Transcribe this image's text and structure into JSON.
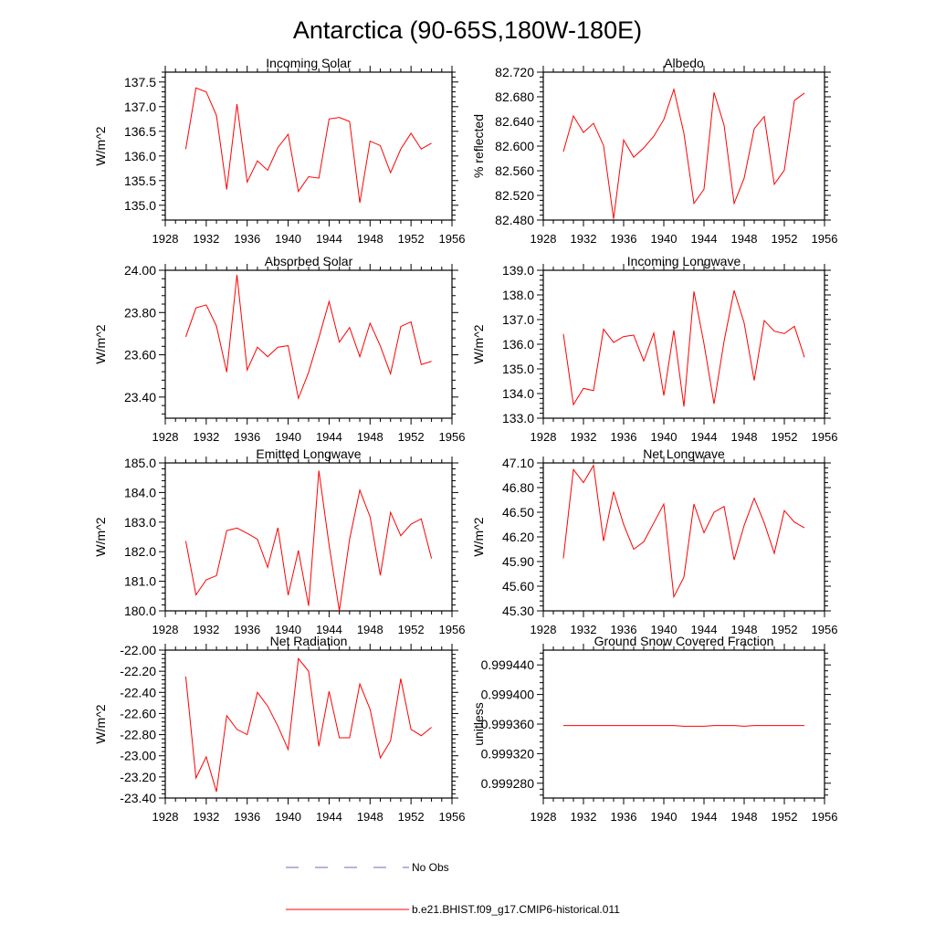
{
  "title": "Antarctica (90-65S,180W-180E)",
  "colors": {
    "model": "#ff0000",
    "obs": "#6b6bbf",
    "axis": "#000000"
  },
  "chart_data": [
    {
      "type": "line",
      "title": "Incoming Solar",
      "ylabel": "W/m^2",
      "xlim": [
        1928,
        1956
      ],
      "x_ticks": [
        1928,
        1932,
        1936,
        1940,
        1944,
        1948,
        1952,
        1956
      ],
      "ylim": [
        134.7,
        137.7
      ],
      "y_ticks": [
        "135.0",
        "135.5",
        "136.0",
        "136.5",
        "137.0",
        "137.5"
      ],
      "x": [
        1930,
        1931,
        1932,
        1933,
        1934,
        1935,
        1936,
        1937,
        1938,
        1939,
        1940,
        1941,
        1942,
        1943,
        1944,
        1945,
        1946,
        1947,
        1948,
        1949,
        1950,
        1951,
        1952,
        1953,
        1954
      ],
      "series": [
        {
          "name": "b.e21.BHIST.f09_g17.CMIP6-historical.011",
          "values": [
            136.14,
            137.38,
            137.3,
            136.82,
            135.32,
            137.05,
            135.47,
            135.9,
            135.71,
            136.17,
            136.44,
            135.28,
            135.58,
            135.55,
            136.75,
            136.78,
            136.7,
            135.05,
            136.3,
            136.21,
            135.66,
            136.14,
            136.46,
            136.14,
            136.26
          ]
        }
      ]
    },
    {
      "type": "line",
      "title": "Albedo",
      "ylabel": "% reflected",
      "xlim": [
        1928,
        1956
      ],
      "x_ticks": [
        1928,
        1932,
        1936,
        1940,
        1944,
        1948,
        1952,
        1956
      ],
      "ylim": [
        82.48,
        82.72
      ],
      "y_ticks": [
        "82.480",
        "82.520",
        "82.560",
        "82.600",
        "82.640",
        "82.680",
        "82.720"
      ],
      "x": [
        1930,
        1931,
        1932,
        1933,
        1934,
        1935,
        1936,
        1937,
        1938,
        1939,
        1940,
        1941,
        1942,
        1943,
        1944,
        1945,
        1946,
        1947,
        1948,
        1949,
        1950,
        1951,
        1952,
        1953,
        1954
      ],
      "series": [
        {
          "name": "b.e21.BHIST.f09_g17.CMIP6-historical.011",
          "values": [
            82.591,
            82.649,
            82.622,
            82.637,
            82.601,
            82.482,
            82.61,
            82.582,
            82.597,
            82.616,
            82.643,
            82.692,
            82.621,
            82.507,
            82.53,
            82.687,
            82.634,
            82.507,
            82.548,
            82.628,
            82.648,
            82.538,
            82.561,
            82.674,
            82.686
          ]
        }
      ]
    },
    {
      "type": "line",
      "title": "Absorbed Solar",
      "ylabel": "W/m^2",
      "xlim": [
        1928,
        1956
      ],
      "x_ticks": [
        1928,
        1932,
        1936,
        1940,
        1944,
        1948,
        1952,
        1956
      ],
      "ylim": [
        23.3,
        24.0
      ],
      "y_ticks": [
        "23.40",
        "23.60",
        "23.80",
        "24.00"
      ],
      "x": [
        1930,
        1931,
        1932,
        1933,
        1934,
        1935,
        1936,
        1937,
        1938,
        1939,
        1940,
        1941,
        1942,
        1943,
        1944,
        1945,
        1946,
        1947,
        1948,
        1949,
        1950,
        1951,
        1952,
        1953,
        1954
      ],
      "series": [
        {
          "name": "b.e21.BHIST.f09_g17.CMIP6-historical.011",
          "values": [
            23.685,
            23.822,
            23.836,
            23.736,
            23.518,
            23.978,
            23.528,
            23.636,
            23.591,
            23.636,
            23.643,
            23.394,
            23.517,
            23.68,
            23.852,
            23.66,
            23.729,
            23.591,
            23.75,
            23.642,
            23.51,
            23.734,
            23.756,
            23.554,
            23.569
          ]
        }
      ]
    },
    {
      "type": "line",
      "title": "Incoming Longwave",
      "ylabel": "W/m^2",
      "xlim": [
        1928,
        1956
      ],
      "x_ticks": [
        1928,
        1932,
        1936,
        1940,
        1944,
        1948,
        1952,
        1956
      ],
      "ylim": [
        133.0,
        139.0
      ],
      "y_ticks": [
        "133.0",
        "134.0",
        "135.0",
        "136.0",
        "137.0",
        "138.0",
        "139.0"
      ],
      "x": [
        1930,
        1931,
        1932,
        1933,
        1934,
        1935,
        1936,
        1937,
        1938,
        1939,
        1940,
        1941,
        1942,
        1943,
        1944,
        1945,
        1946,
        1947,
        1948,
        1949,
        1950,
        1951,
        1952,
        1953,
        1954
      ],
      "series": [
        {
          "name": "b.e21.BHIST.f09_g17.CMIP6-historical.011",
          "values": [
            136.42,
            133.55,
            134.21,
            134.12,
            136.61,
            136.07,
            136.31,
            136.37,
            135.32,
            136.45,
            133.92,
            136.56,
            133.47,
            138.14,
            136.02,
            133.58,
            136.12,
            138.18,
            136.86,
            134.53,
            136.96,
            136.53,
            136.43,
            136.73,
            135.47
          ]
        }
      ]
    },
    {
      "type": "line",
      "title": "Emitted Longwave",
      "ylabel": "W/m^2",
      "xlim": [
        1928,
        1956
      ],
      "x_ticks": [
        1928,
        1932,
        1936,
        1940,
        1944,
        1948,
        1952,
        1956
      ],
      "ylim": [
        180.0,
        185.0
      ],
      "y_ticks": [
        "180.0",
        "181.0",
        "182.0",
        "183.0",
        "184.0",
        "185.0"
      ],
      "x": [
        1930,
        1931,
        1932,
        1933,
        1934,
        1935,
        1936,
        1937,
        1938,
        1939,
        1940,
        1941,
        1942,
        1943,
        1944,
        1945,
        1946,
        1947,
        1948,
        1949,
        1950,
        1951,
        1952,
        1953,
        1954
      ],
      "series": [
        {
          "name": "b.e21.BHIST.f09_g17.CMIP6-historical.011",
          "values": [
            182.36,
            180.54,
            181.05,
            181.19,
            182.71,
            182.8,
            182.62,
            182.42,
            181.47,
            182.81,
            180.53,
            182.04,
            180.17,
            184.74,
            182.22,
            180.0,
            182.42,
            184.08,
            183.18,
            181.2,
            183.33,
            182.54,
            182.93,
            183.11,
            181.77
          ]
        }
      ]
    },
    {
      "type": "line",
      "title": "Net Longwave",
      "ylabel": "W/m^2",
      "xlim": [
        1928,
        1956
      ],
      "x_ticks": [
        1928,
        1932,
        1936,
        1940,
        1944,
        1948,
        1952,
        1956
      ],
      "ylim": [
        45.3,
        47.1
      ],
      "y_ticks": [
        "45.30",
        "45.60",
        "45.90",
        "46.20",
        "46.50",
        "46.80",
        "47.10"
      ],
      "x": [
        1930,
        1931,
        1932,
        1933,
        1934,
        1935,
        1936,
        1937,
        1938,
        1939,
        1940,
        1941,
        1942,
        1943,
        1944,
        1945,
        1946,
        1947,
        1948,
        1949,
        1950,
        1951,
        1952,
        1953,
        1954
      ],
      "series": [
        {
          "name": "b.e21.BHIST.f09_g17.CMIP6-historical.011",
          "values": [
            45.94,
            47.02,
            46.86,
            47.07,
            46.15,
            46.75,
            46.35,
            46.05,
            46.14,
            46.37,
            46.6,
            45.47,
            45.71,
            46.6,
            46.25,
            46.5,
            46.57,
            45.92,
            46.34,
            46.67,
            46.37,
            46.0,
            46.52,
            46.38,
            46.31
          ]
        }
      ]
    },
    {
      "type": "line",
      "title": "Net Radiation",
      "ylabel": "W/m^2",
      "xlim": [
        1928,
        1956
      ],
      "x_ticks": [
        1928,
        1932,
        1936,
        1940,
        1944,
        1948,
        1952,
        1956
      ],
      "ylim": [
        -23.4,
        -22.0
      ],
      "y_ticks": [
        "-23.40",
        "-23.20",
        "-23.00",
        "-22.80",
        "-22.60",
        "-22.40",
        "-22.20",
        "-22.00"
      ],
      "x": [
        1930,
        1931,
        1932,
        1933,
        1934,
        1935,
        1936,
        1937,
        1938,
        1939,
        1940,
        1941,
        1942,
        1943,
        1944,
        1945,
        1946,
        1947,
        1948,
        1949,
        1950,
        1951,
        1952,
        1953,
        1954
      ],
      "series": [
        {
          "name": "b.e21.BHIST.f09_g17.CMIP6-historical.011",
          "values": [
            -22.25,
            -23.21,
            -23.01,
            -23.34,
            -22.62,
            -22.75,
            -22.8,
            -22.4,
            -22.53,
            -22.72,
            -22.94,
            -22.08,
            -22.2,
            -22.91,
            -22.39,
            -22.83,
            -22.83,
            -22.32,
            -22.56,
            -23.02,
            -22.86,
            -22.27,
            -22.75,
            -22.81,
            -22.73
          ]
        }
      ]
    },
    {
      "type": "line",
      "title": "Ground Snow Covered Fraction",
      "ylabel": "unitless",
      "xlim": [
        1928,
        1956
      ],
      "x_ticks": [
        1928,
        1932,
        1936,
        1940,
        1944,
        1948,
        1952,
        1956
      ],
      "ylim": [
        0.99926,
        0.99946
      ],
      "y_ticks": [
        "0.999280",
        "0.999320",
        "0.999360",
        "0.999400",
        "0.999440"
      ],
      "x": [
        1930,
        1931,
        1932,
        1933,
        1934,
        1935,
        1936,
        1937,
        1938,
        1939,
        1940,
        1941,
        1942,
        1943,
        1944,
        1945,
        1946,
        1947,
        1948,
        1949,
        1950,
        1951,
        1952,
        1953,
        1954
      ],
      "series": [
        {
          "name": "b.e21.BHIST.f09_g17.CMIP6-historical.011",
          "values": [
            0.999358,
            0.999358,
            0.999358,
            0.999358,
            0.999358,
            0.999358,
            0.999358,
            0.999358,
            0.999358,
            0.999358,
            0.999358,
            0.999358,
            0.999357,
            0.999357,
            0.999357,
            0.999358,
            0.999358,
            0.999358,
            0.999357,
            0.999358,
            0.999358,
            0.999358,
            0.999358,
            0.999358,
            0.999358
          ]
        }
      ]
    }
  ],
  "legend": [
    {
      "label": "No Obs",
      "style": "dashed",
      "color": "#6b6bbf"
    },
    {
      "label": "b.e21.BHIST.f09_g17.CMIP6-historical.011",
      "style": "solid",
      "color": "#ff0000"
    }
  ]
}
